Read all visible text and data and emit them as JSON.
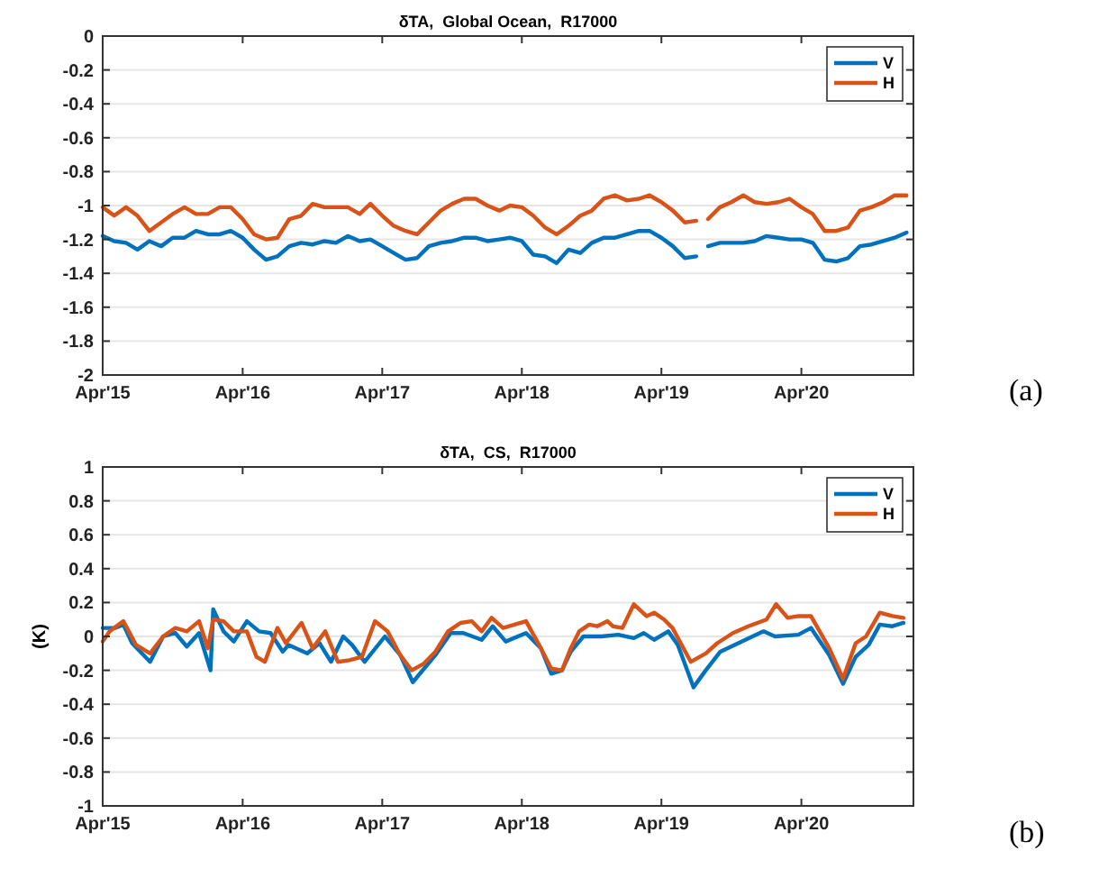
{
  "chart_data": [
    {
      "type": "line",
      "title": "δTA,  Global Ocean,  R17000",
      "annotations": [
        "(a)"
      ],
      "x": [
        "2015-04-01",
        "2015-05-01",
        "2015-06-01",
        "2015-07-01",
        "2015-08-01",
        "2015-09-01",
        "2015-10-01",
        "2015-11-01",
        "2015-12-01",
        "2016-01-01",
        "2016-02-01",
        "2016-03-01",
        "2016-04-01",
        "2016-05-01",
        "2016-06-01",
        "2016-07-01",
        "2016-08-01",
        "2016-09-01",
        "2016-10-01",
        "2016-11-01",
        "2016-12-01",
        "2017-01-01",
        "2017-02-01",
        "2017-03-01",
        "2017-04-01",
        "2017-05-01",
        "2017-06-01",
        "2017-07-01",
        "2017-08-01",
        "2017-09-01",
        "2017-10-01",
        "2017-11-01",
        "2017-12-01",
        "2018-01-01",
        "2018-02-01",
        "2018-03-01",
        "2018-04-01",
        "2018-05-01",
        "2018-06-01",
        "2018-07-01",
        "2018-08-01",
        "2018-09-01",
        "2018-10-01",
        "2018-11-01",
        "2018-12-01",
        "2019-01-01",
        "2019-02-01",
        "2019-03-01",
        "2019-04-01",
        "2019-05-01",
        "2019-06-01",
        "2019-07-01",
        "2019-07-16",
        "2019-08-01",
        "2019-09-01",
        "2019-10-01",
        "2019-11-01",
        "2019-12-01",
        "2020-01-01",
        "2020-02-01",
        "2020-03-01",
        "2020-04-01",
        "2020-05-01",
        "2020-06-01",
        "2020-07-01",
        "2020-08-01",
        "2020-09-01",
        "2020-10-01",
        "2020-11-01",
        "2020-12-01",
        "2021-01-01"
      ],
      "series": [
        {
          "name": "V",
          "color": "#0072bd",
          "values": [
            -1.18,
            -1.21,
            -1.22,
            -1.26,
            -1.21,
            -1.24,
            -1.19,
            -1.19,
            -1.15,
            -1.17,
            -1.17,
            -1.15,
            -1.19,
            -1.26,
            -1.32,
            -1.3,
            -1.24,
            -1.22,
            -1.23,
            -1.21,
            -1.22,
            -1.18,
            -1.21,
            -1.2,
            -1.24,
            -1.28,
            -1.32,
            -1.31,
            -1.24,
            -1.22,
            -1.21,
            -1.19,
            -1.19,
            -1.21,
            -1.2,
            -1.19,
            -1.21,
            -1.29,
            -1.3,
            -1.34,
            -1.26,
            -1.28,
            -1.22,
            -1.19,
            -1.19,
            -1.17,
            -1.15,
            -1.15,
            -1.19,
            -1.24,
            -1.31,
            -1.3,
            null,
            -1.24,
            -1.22,
            -1.22,
            -1.22,
            -1.21,
            -1.18,
            -1.19,
            -1.2,
            -1.2,
            -1.22,
            -1.32,
            -1.33,
            -1.31,
            -1.24,
            -1.23,
            -1.21,
            -1.19,
            -1.16
          ]
        },
        {
          "name": "H",
          "color": "#d95319",
          "values": [
            -1.01,
            -1.06,
            -1.01,
            -1.06,
            -1.15,
            -1.1,
            -1.05,
            -1.01,
            -1.05,
            -1.05,
            -1.01,
            -1.01,
            -1.08,
            -1.17,
            -1.2,
            -1.19,
            -1.08,
            -1.06,
            -0.99,
            -1.01,
            -1.01,
            -1.01,
            -1.05,
            -0.99,
            -1.06,
            -1.12,
            -1.15,
            -1.17,
            -1.1,
            -1.03,
            -0.99,
            -0.96,
            -0.96,
            -1.0,
            -1.03,
            -1.0,
            -1.01,
            -1.06,
            -1.13,
            -1.17,
            -1.12,
            -1.06,
            -1.03,
            -0.96,
            -0.94,
            -0.97,
            -0.96,
            -0.94,
            -0.98,
            -1.03,
            -1.1,
            -1.09,
            null,
            -1.08,
            -1.01,
            -0.98,
            -0.94,
            -0.98,
            -0.99,
            -0.98,
            -0.96,
            -1.01,
            -1.05,
            -1.15,
            -1.15,
            -1.13,
            -1.03,
            -1.01,
            -0.98,
            -0.94,
            -0.94
          ]
        }
      ],
      "xlim": [
        "2015-04-01",
        "2021-01-19"
      ],
      "ylim": [
        -2,
        0
      ],
      "xticks": [
        {
          "value": "2015-04-01",
          "label": "Apr'15"
        },
        {
          "value": "2016-04-01",
          "label": "Apr'16"
        },
        {
          "value": "2017-04-01",
          "label": "Apr'17"
        },
        {
          "value": "2018-04-01",
          "label": "Apr'18"
        },
        {
          "value": "2019-04-01",
          "label": "Apr'19"
        },
        {
          "value": "2020-04-01",
          "label": "Apr'20"
        }
      ],
      "yticks": [
        0,
        -0.2,
        -0.4,
        -0.6,
        -0.8,
        -1,
        -1.2,
        -1.4,
        -1.6,
        -1.8,
        -2
      ],
      "grid": "y",
      "legend": "top right"
    },
    {
      "type": "line",
      "title": "δTA,  CS,  R17000",
      "ylabel": "(K)",
      "annotations": [
        "(b)"
      ],
      "series": [
        {
          "name": "V",
          "color": "#0072bd",
          "x": [
            "2015-04-01",
            "2015-05-03",
            "2015-05-25",
            "2015-06-17",
            "2015-08-03",
            "2015-09-06",
            "2015-10-08",
            "2015-11-07",
            "2015-12-09",
            "2016-01-08",
            "2016-01-15",
            "2016-02-11",
            "2016-03-09",
            "2016-04-12",
            "2016-05-14",
            "2016-06-13",
            "2016-07-15",
            "2016-07-30",
            "2016-09-17",
            "2016-10-19",
            "2016-11-18",
            "2016-12-20",
            "2017-01-12",
            "2017-02-14",
            "2017-04-08",
            "2017-05-18",
            "2017-06-20",
            "2017-07-12",
            "2017-08-18",
            "2017-09-27",
            "2017-10-30",
            "2017-12-17",
            "2018-01-15",
            "2018-02-18",
            "2018-04-12",
            "2018-05-21",
            "2018-06-17",
            "2018-07-15",
            "2018-08-07",
            "2018-09-09",
            "2018-10-26",
            "2018-12-09",
            "2019-01-19",
            "2019-02-14",
            "2019-03-13",
            "2019-04-19",
            "2019-05-14",
            "2019-06-24",
            "2019-07-26",
            "2019-09-02",
            "2019-10-19",
            "2019-12-24",
            "2020-01-23",
            "2020-03-24",
            "2020-04-26",
            "2020-06-13",
            "2020-07-19",
            "2020-08-21",
            "2020-09-24",
            "2020-10-23",
            "2020-11-25",
            "2020-12-24"
          ],
          "values": [
            0.05,
            0.05,
            0.07,
            -0.04,
            -0.15,
            0.0,
            0.02,
            -0.06,
            0.02,
            -0.2,
            0.16,
            0.03,
            -0.03,
            0.09,
            0.03,
            0.02,
            -0.09,
            -0.05,
            -0.1,
            -0.04,
            -0.15,
            0.0,
            -0.05,
            -0.15,
            0.0,
            -0.11,
            -0.27,
            -0.21,
            -0.11,
            0.02,
            0.02,
            -0.02,
            0.06,
            -0.03,
            0.02,
            -0.07,
            -0.22,
            -0.2,
            -0.09,
            0.0,
            0.0,
            0.01,
            -0.01,
            0.02,
            -0.02,
            0.03,
            -0.05,
            -0.3,
            -0.2,
            -0.09,
            -0.04,
            0.03,
            0.0,
            0.01,
            0.05,
            -0.11,
            -0.28,
            -0.12,
            -0.05,
            0.07,
            0.06,
            0.08
          ]
        },
        {
          "name": "H",
          "color": "#d95319",
          "x": [
            "2015-04-01",
            "2015-04-19",
            "2015-05-25",
            "2015-06-27",
            "2015-08-03",
            "2015-09-06",
            "2015-10-08",
            "2015-11-07",
            "2015-12-09",
            "2016-01-01",
            "2016-01-15",
            "2016-02-11",
            "2016-03-09",
            "2016-04-12",
            "2016-05-07",
            "2016-05-29",
            "2016-07-01",
            "2016-07-23",
            "2016-09-02",
            "2016-10-01",
            "2016-11-03",
            "2016-12-06",
            "2017-01-05",
            "2017-02-07",
            "2017-03-13",
            "2017-04-15",
            "2017-05-18",
            "2017-06-17",
            "2017-07-19",
            "2017-08-18",
            "2017-09-20",
            "2017-10-23",
            "2017-11-21",
            "2017-12-17",
            "2018-01-12",
            "2018-02-11",
            "2018-04-12",
            "2018-05-21",
            "2018-06-17",
            "2018-07-15",
            "2018-08-07",
            "2018-08-29",
            "2018-09-24",
            "2018-10-15",
            "2018-11-11",
            "2018-11-25",
            "2018-12-20",
            "2019-01-19",
            "2019-02-21",
            "2019-03-13",
            "2019-04-08",
            "2019-04-30",
            "2019-06-17",
            "2019-07-26",
            "2019-08-25",
            "2019-10-05",
            "2019-11-14",
            "2020-01-01",
            "2020-01-26",
            "2020-02-25",
            "2020-03-24",
            "2020-04-26",
            "2020-06-13",
            "2020-07-19",
            "2020-08-21",
            "2020-09-17",
            "2020-10-23",
            "2020-11-25",
            "2020-12-24"
          ],
          "values": [
            -0.03,
            0.03,
            0.09,
            -0.05,
            -0.1,
            0.0,
            0.05,
            0.03,
            0.09,
            -0.07,
            0.1,
            0.09,
            0.03,
            0.03,
            -0.12,
            -0.15,
            0.05,
            -0.04,
            0.08,
            -0.07,
            0.03,
            -0.15,
            -0.14,
            -0.12,
            0.09,
            0.03,
            -0.11,
            -0.2,
            -0.16,
            -0.09,
            0.03,
            0.08,
            0.09,
            0.03,
            0.11,
            0.05,
            0.09,
            -0.07,
            -0.19,
            -0.2,
            -0.07,
            0.03,
            0.07,
            0.06,
            0.09,
            0.06,
            0.05,
            0.19,
            0.12,
            0.14,
            0.1,
            0.05,
            -0.15,
            -0.1,
            -0.04,
            0.02,
            0.06,
            0.1,
            0.19,
            0.11,
            0.12,
            0.12,
            -0.07,
            -0.25,
            -0.04,
            0.0,
            0.14,
            0.12,
            0.11
          ]
        }
      ],
      "xlim": [
        "2015-04-01",
        "2021-01-19"
      ],
      "ylim": [
        -1,
        1
      ],
      "xticks": [
        {
          "value": "2015-04-01",
          "label": "Apr'15"
        },
        {
          "value": "2016-04-01",
          "label": "Apr'16"
        },
        {
          "value": "2017-04-01",
          "label": "Apr'17"
        },
        {
          "value": "2018-04-01",
          "label": "Apr'18"
        },
        {
          "value": "2019-04-01",
          "label": "Apr'19"
        },
        {
          "value": "2020-04-01",
          "label": "Apr'20"
        }
      ],
      "yticks": [
        1,
        0.8,
        0.6,
        0.4,
        0.2,
        0,
        -0.2,
        -0.4,
        -0.6,
        -0.8,
        -1
      ],
      "grid": "y",
      "legend": "top right"
    }
  ]
}
